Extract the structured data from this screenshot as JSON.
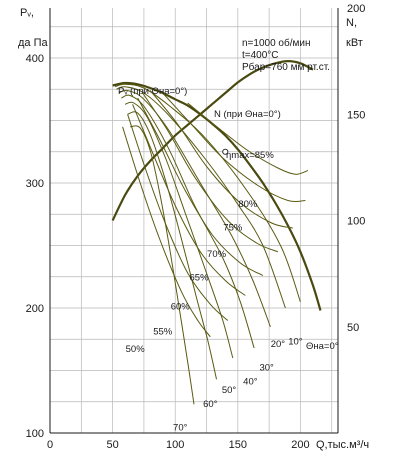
{
  "chart_data": {
    "type": "line",
    "xlabel": "Q,тыс.м³/ч",
    "ylabel": [
      "Pᵥ,",
      "да Па"
    ],
    "y2label": [
      "N,",
      "кВт"
    ],
    "xlim": [
      0,
      230
    ],
    "ylim": [
      100,
      440
    ],
    "y2lim": [
      0,
      200
    ],
    "x_ticks": [
      0,
      50,
      100,
      150,
      200
    ],
    "y_ticks": [
      100,
      200,
      300,
      400
    ],
    "y2_ticks": [
      50,
      100,
      150,
      200
    ],
    "notes": [
      "n=1000 об/мин",
      "t=400°C",
      "Pбар=760 мм рт.ст."
    ],
    "grid": true,
    "series": [
      {
        "name": "Pv (при Θна=0°)",
        "axis": "left",
        "points": [
          [
            50,
            378
          ],
          [
            60,
            380
          ],
          [
            70,
            379
          ],
          [
            80,
            376
          ],
          [
            90,
            372
          ],
          [
            100,
            367
          ],
          [
            110,
            362
          ],
          [
            120,
            355
          ],
          [
            130,
            347
          ],
          [
            140,
            338
          ],
          [
            150,
            327
          ],
          [
            160,
            314
          ],
          [
            170,
            300
          ],
          [
            180,
            284
          ],
          [
            190,
            266
          ],
          [
            200,
            245
          ],
          [
            210,
            218
          ],
          [
            216,
            198
          ]
        ]
      },
      {
        "name": "N (при Θна=0°)",
        "axis": "right",
        "points": [
          [
            50,
            100
          ],
          [
            60,
            112
          ],
          [
            70,
            121
          ],
          [
            80,
            128
          ],
          [
            90,
            134
          ],
          [
            100,
            140
          ],
          [
            110,
            145
          ],
          [
            120,
            150
          ],
          [
            130,
            155
          ],
          [
            140,
            160
          ],
          [
            150,
            165
          ],
          [
            160,
            169
          ],
          [
            170,
            172
          ],
          [
            180,
            174
          ],
          [
            190,
            175
          ],
          [
            200,
            174
          ],
          [
            210,
            171
          ]
        ]
      },
      {
        "name": "Pv 10°",
        "axis": "left",
        "points": [
          [
            52,
            377
          ],
          [
            60,
            379
          ],
          [
            75,
            376
          ],
          [
            95,
            362
          ],
          [
            125,
            335
          ],
          [
            160,
            290
          ],
          [
            185,
            248
          ],
          [
            200,
            205
          ]
        ]
      },
      {
        "name": "Pv 20°",
        "axis": "left",
        "points": [
          [
            53,
            375
          ],
          [
            60,
            377
          ],
          [
            75,
            372
          ],
          [
            95,
            354
          ],
          [
            125,
            318
          ],
          [
            150,
            283
          ],
          [
            170,
            250
          ],
          [
            188,
            200
          ]
        ]
      },
      {
        "name": "Pv 30°",
        "axis": "left",
        "points": [
          [
            55,
            372
          ],
          [
            62,
            374
          ],
          [
            75,
            367
          ],
          [
            95,
            342
          ],
          [
            120,
            300
          ],
          [
            145,
            258
          ],
          [
            162,
            222
          ],
          [
            176,
            185
          ]
        ]
      },
      {
        "name": "Pv 40°",
        "axis": "left",
        "points": [
          [
            57,
            368
          ],
          [
            64,
            370
          ],
          [
            76,
            360
          ],
          [
            95,
            327
          ],
          [
            115,
            283
          ],
          [
            138,
            240
          ],
          [
            152,
            205
          ],
          [
            163,
            168
          ]
        ]
      },
      {
        "name": "Pv 50°",
        "axis": "left",
        "points": [
          [
            60,
            363
          ],
          [
            67,
            364
          ],
          [
            78,
            352
          ],
          [
            93,
            318
          ],
          [
            108,
            276
          ],
          [
            125,
            228
          ],
          [
            138,
            190
          ],
          [
            146,
            160
          ]
        ]
      },
      {
        "name": "Pv 60°",
        "axis": "left",
        "points": [
          [
            62,
            355
          ],
          [
            70,
            356
          ],
          [
            80,
            339
          ],
          [
            92,
            303
          ],
          [
            104,
            259
          ],
          [
            116,
            212
          ],
          [
            126,
            174
          ],
          [
            133,
            143
          ]
        ]
      },
      {
        "name": "Pv 70°",
        "axis": "left",
        "points": [
          [
            64,
            345
          ],
          [
            72,
            344
          ],
          [
            80,
            326
          ],
          [
            88,
            290
          ],
          [
            96,
            245
          ],
          [
            104,
            195
          ],
          [
            111,
            150
          ],
          [
            115,
            123
          ]
        ]
      },
      {
        "name": "η 50%",
        "axis": "left",
        "points": [
          [
            58,
            345
          ],
          [
            72,
            300
          ],
          [
            88,
            254
          ],
          [
            105,
            213
          ],
          [
            118,
            190
          ],
          [
            128,
            177
          ]
        ]
      },
      {
        "name": "η 55%",
        "axis": "left",
        "points": [
          [
            62,
            355
          ],
          [
            76,
            312
          ],
          [
            92,
            268
          ],
          [
            110,
            228
          ],
          [
            128,
            203
          ],
          [
            142,
            190
          ]
        ]
      },
      {
        "name": "η 60%",
        "axis": "left",
        "points": [
          [
            66,
            363
          ],
          [
            82,
            324
          ],
          [
            100,
            282
          ],
          [
            120,
            245
          ],
          [
            140,
            222
          ],
          [
            156,
            210
          ]
        ]
      },
      {
        "name": "η 65%",
        "axis": "left",
        "points": [
          [
            70,
            368
          ],
          [
            88,
            334
          ],
          [
            108,
            294
          ],
          [
            130,
            258
          ],
          [
            152,
            236
          ],
          [
            170,
            226
          ]
        ]
      },
      {
        "name": "η 70%",
        "axis": "left",
        "points": [
          [
            74,
            372
          ],
          [
            94,
            342
          ],
          [
            116,
            304
          ],
          [
            142,
            270
          ],
          [
            165,
            252
          ],
          [
            182,
            245
          ]
        ]
      },
      {
        "name": "η 75%",
        "axis": "left",
        "points": [
          [
            80,
            374
          ],
          [
            102,
            347
          ],
          [
            126,
            312
          ],
          [
            152,
            284
          ],
          [
            177,
            268
          ],
          [
            194,
            264
          ]
        ]
      },
      {
        "name": "η 80%",
        "axis": "left",
        "points": [
          [
            90,
            372
          ],
          [
            112,
            348
          ],
          [
            138,
            320
          ],
          [
            166,
            298
          ],
          [
            190,
            286
          ],
          [
            204,
            286
          ]
        ]
      },
      {
        "name": "η 85%",
        "axis": "left",
        "points": [
          [
            110,
            364
          ],
          [
            132,
            346
          ],
          [
            158,
            326
          ],
          [
            182,
            312
          ],
          [
            196,
            307
          ],
          [
            206,
            310
          ]
        ]
      }
    ],
    "series_label_text": {
      "pv_main": "Pᵥ (при Θна=0°)",
      "n_main": "N (при Θна=0°)",
      "eta_max": "ηmax=85%",
      "theta_zero": "Θна=0°"
    },
    "annotation_points": [
      {
        "text": "ηmax=85%",
        "x": 140,
        "y": 325
      }
    ],
    "angle_labels": [
      {
        "text": "10°",
        "x": 196,
        "y": 171
      },
      {
        "text": "20°",
        "x": 182,
        "y": 169
      },
      {
        "text": "30°",
        "x": 173,
        "y": 150
      },
      {
        "text": "40°",
        "x": 160,
        "y": 139
      },
      {
        "text": "50°",
        "x": 143,
        "y": 132
      },
      {
        "text": "60°",
        "x": 128,
        "y": 121
      },
      {
        "text": "70°",
        "x": 104,
        "y": 102
      }
    ],
    "eta_labels": [
      {
        "text": "80%",
        "x": 158,
        "y": 281
      },
      {
        "text": "75%",
        "x": 146,
        "y": 262
      },
      {
        "text": "70%",
        "x": 133,
        "y": 241
      },
      {
        "text": "65%",
        "x": 119,
        "y": 222
      },
      {
        "text": "60%",
        "x": 104,
        "y": 199
      },
      {
        "text": "55%",
        "x": 90,
        "y": 179
      },
      {
        "text": "50%",
        "x": 68,
        "y": 165
      }
    ],
    "colors": {
      "curve": "#5a5a12",
      "grid": "#b8b8b8",
      "text": "#1a1a1a"
    }
  }
}
